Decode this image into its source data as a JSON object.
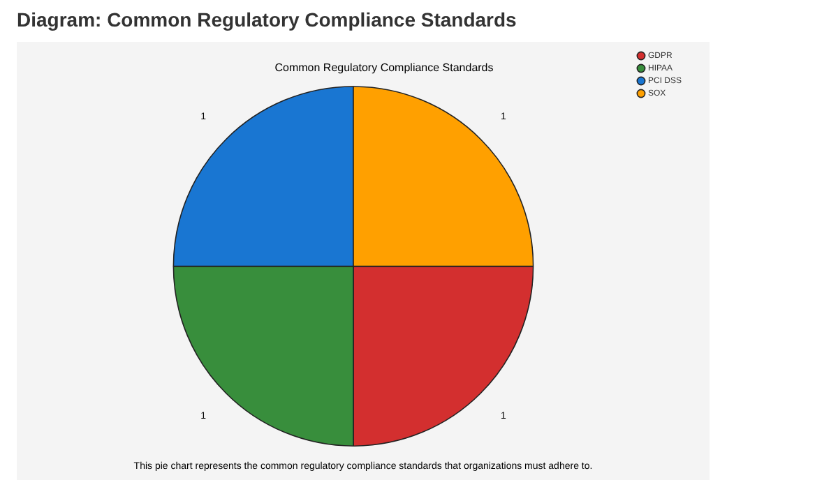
{
  "chart_data": {
    "type": "pie",
    "title": "Diagram: Common Regulatory Compliance Standards",
    "subtitle": "Common Regulatory Compliance Standards",
    "categories": [
      "GDPR",
      "HIPAA",
      "PCI DSS",
      "SOX"
    ],
    "values": [
      1,
      1,
      1,
      1
    ],
    "colors": [
      "#d32f2f",
      "#388e3c",
      "#1976d2",
      "#ffa000"
    ],
    "data_labels": true,
    "legend": "top right",
    "annotations": [
      "This pie chart represents the common regulatory compliance standards that organizations must adhere to."
    ]
  }
}
